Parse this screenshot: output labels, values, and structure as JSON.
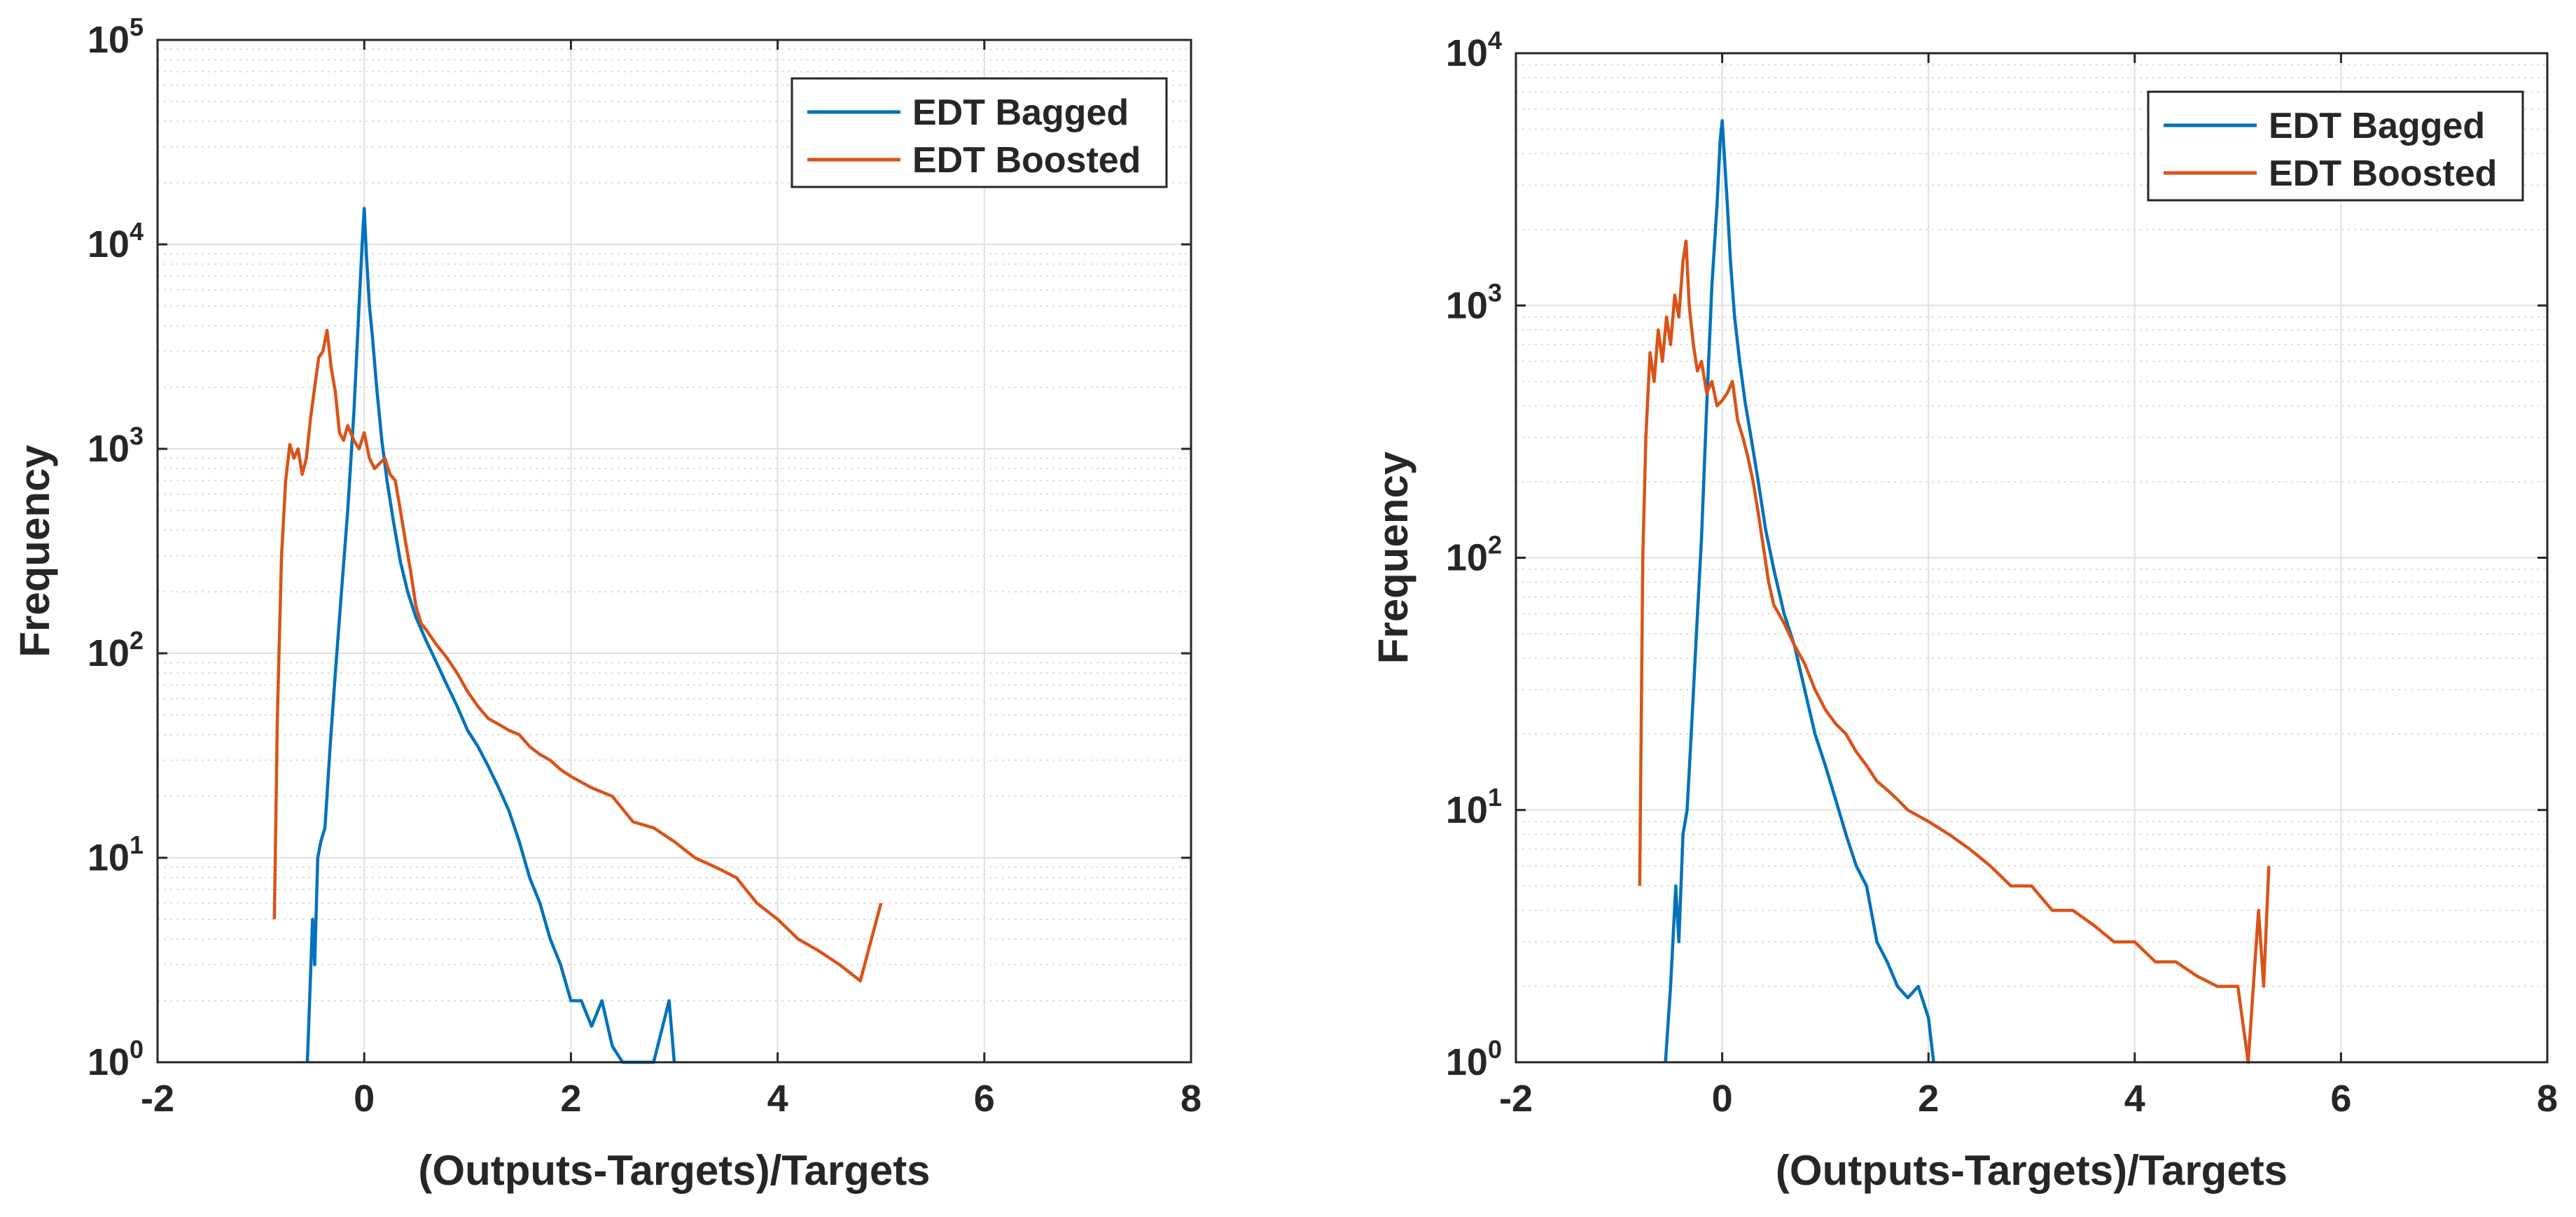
{
  "chart_data": [
    {
      "type": "line",
      "xlabel": "(Outputs-Targets)/Targets",
      "ylabel": "Frequency",
      "xlim": [
        -2,
        8
      ],
      "ylim": [
        1,
        100000
      ],
      "yscale": "log",
      "grid": true,
      "minor_grid": true,
      "legend_position": "top-right",
      "x_ticks": [
        "-2",
        "0",
        "2",
        "4",
        "6",
        "8"
      ],
      "y_ticks": [
        {
          "base": "10",
          "exp": "0"
        },
        {
          "base": "10",
          "exp": "1"
        },
        {
          "base": "10",
          "exp": "2"
        },
        {
          "base": "10",
          "exp": "3"
        },
        {
          "base": "10",
          "exp": "4"
        },
        {
          "base": "10",
          "exp": "5"
        }
      ],
      "series": [
        {
          "name": "EDT Bagged",
          "color": "#0072BD",
          "points": [
            [
              -0.55,
              1
            ],
            [
              -0.5,
              5
            ],
            [
              -0.48,
              3
            ],
            [
              -0.45,
              10
            ],
            [
              -0.42,
              12
            ],
            [
              -0.38,
              14
            ],
            [
              -0.33,
              35
            ],
            [
              -0.28,
              80
            ],
            [
              -0.22,
              200
            ],
            [
              -0.16,
              500
            ],
            [
              -0.1,
              1500
            ],
            [
              -0.05,
              5000
            ],
            [
              -0.02,
              10000
            ],
            [
              0.0,
              15000
            ],
            [
              0.02,
              9000
            ],
            [
              0.05,
              5000
            ],
            [
              0.08,
              3500
            ],
            [
              0.12,
              2000
            ],
            [
              0.17,
              1100
            ],
            [
              0.22,
              700
            ],
            [
              0.28,
              450
            ],
            [
              0.35,
              280
            ],
            [
              0.42,
              200
            ],
            [
              0.5,
              150
            ],
            [
              0.6,
              115
            ],
            [
              0.7,
              90
            ],
            [
              0.8,
              70
            ],
            [
              0.9,
              55
            ],
            [
              1.0,
              42
            ],
            [
              1.1,
              35
            ],
            [
              1.2,
              28
            ],
            [
              1.3,
              22
            ],
            [
              1.4,
              17
            ],
            [
              1.5,
              12
            ],
            [
              1.6,
              8
            ],
            [
              1.7,
              6
            ],
            [
              1.8,
              4
            ],
            [
              1.9,
              3
            ],
            [
              2.0,
              2
            ],
            [
              2.1,
              2
            ],
            [
              2.2,
              1.5
            ],
            [
              2.3,
              2
            ],
            [
              2.4,
              1.2
            ],
            [
              2.5,
              1
            ],
            [
              2.8,
              1
            ],
            [
              2.95,
              2
            ],
            [
              3.0,
              1
            ]
          ]
        },
        {
          "name": "EDT Boosted",
          "color": "#D95319",
          "points": [
            [
              -0.87,
              5
            ],
            [
              -0.84,
              50
            ],
            [
              -0.8,
              300
            ],
            [
              -0.76,
              700
            ],
            [
              -0.72,
              1050
            ],
            [
              -0.68,
              900
            ],
            [
              -0.64,
              1000
            ],
            [
              -0.6,
              750
            ],
            [
              -0.56,
              900
            ],
            [
              -0.52,
              1400
            ],
            [
              -0.48,
              2000
            ],
            [
              -0.44,
              2800
            ],
            [
              -0.4,
              3000
            ],
            [
              -0.36,
              3800
            ],
            [
              -0.32,
              2500
            ],
            [
              -0.28,
              1900
            ],
            [
              -0.24,
              1200
            ],
            [
              -0.2,
              1100
            ],
            [
              -0.16,
              1300
            ],
            [
              -0.1,
              1100
            ],
            [
              -0.05,
              1000
            ],
            [
              0.0,
              1200
            ],
            [
              0.05,
              900
            ],
            [
              0.1,
              800
            ],
            [
              0.15,
              850
            ],
            [
              0.2,
              900
            ],
            [
              0.25,
              750
            ],
            [
              0.3,
              700
            ],
            [
              0.35,
              500
            ],
            [
              0.4,
              350
            ],
            [
              0.45,
              250
            ],
            [
              0.5,
              170
            ],
            [
              0.55,
              140
            ],
            [
              0.6,
              130
            ],
            [
              0.7,
              110
            ],
            [
              0.8,
              95
            ],
            [
              0.9,
              80
            ],
            [
              1.0,
              65
            ],
            [
              1.1,
              55
            ],
            [
              1.2,
              48
            ],
            [
              1.3,
              45
            ],
            [
              1.4,
              42
            ],
            [
              1.5,
              40
            ],
            [
              1.6,
              35
            ],
            [
              1.7,
              32
            ],
            [
              1.8,
              30
            ],
            [
              1.9,
              27
            ],
            [
              2.0,
              25
            ],
            [
              2.2,
              22
            ],
            [
              2.4,
              20
            ],
            [
              2.6,
              15
            ],
            [
              2.8,
              14
            ],
            [
              3.0,
              12
            ],
            [
              3.2,
              10
            ],
            [
              3.4,
              9
            ],
            [
              3.6,
              8
            ],
            [
              3.8,
              6
            ],
            [
              4.0,
              5
            ],
            [
              4.2,
              4
            ],
            [
              4.4,
              3.5
            ],
            [
              4.6,
              3
            ],
            [
              4.8,
              2.5
            ],
            [
              5.0,
              6
            ]
          ]
        }
      ]
    },
    {
      "type": "line",
      "xlabel": "(Outputs-Targets)/Targets",
      "ylabel": "Frequency",
      "xlim": [
        -2,
        8
      ],
      "ylim": [
        1,
        10000
      ],
      "yscale": "log",
      "grid": true,
      "minor_grid": true,
      "legend_position": "top-right",
      "x_ticks": [
        "-2",
        "0",
        "2",
        "4",
        "6",
        "8"
      ],
      "y_ticks": [
        {
          "base": "10",
          "exp": "0"
        },
        {
          "base": "10",
          "exp": "1"
        },
        {
          "base": "10",
          "exp": "2"
        },
        {
          "base": "10",
          "exp": "3"
        },
        {
          "base": "10",
          "exp": "4"
        }
      ],
      "series": [
        {
          "name": "EDT Bagged",
          "color": "#0072BD",
          "points": [
            [
              -0.55,
              1
            ],
            [
              -0.5,
              2
            ],
            [
              -0.45,
              5
            ],
            [
              -0.42,
              3
            ],
            [
              -0.38,
              8
            ],
            [
              -0.34,
              10
            ],
            [
              -0.3,
              20
            ],
            [
              -0.25,
              50
            ],
            [
              -0.2,
              120
            ],
            [
              -0.15,
              400
            ],
            [
              -0.1,
              1200
            ],
            [
              -0.05,
              2500
            ],
            [
              -0.02,
              4500
            ],
            [
              0.0,
              5400
            ],
            [
              0.02,
              4000
            ],
            [
              0.05,
              2500
            ],
            [
              0.08,
              1500
            ],
            [
              0.12,
              900
            ],
            [
              0.17,
              600
            ],
            [
              0.22,
              420
            ],
            [
              0.28,
              300
            ],
            [
              0.35,
              200
            ],
            [
              0.42,
              130
            ],
            [
              0.5,
              90
            ],
            [
              0.6,
              60
            ],
            [
              0.7,
              45
            ],
            [
              0.8,
              30
            ],
            [
              0.9,
              20
            ],
            [
              1.0,
              15
            ],
            [
              1.1,
              11
            ],
            [
              1.2,
              8
            ],
            [
              1.3,
              6
            ],
            [
              1.4,
              5
            ],
            [
              1.5,
              3
            ],
            [
              1.6,
              2.5
            ],
            [
              1.7,
              2
            ],
            [
              1.8,
              1.8
            ],
            [
              1.9,
              2
            ],
            [
              2.0,
              1.5
            ],
            [
              2.05,
              1
            ]
          ]
        },
        {
          "name": "EDT Boosted",
          "color": "#D95319",
          "points": [
            [
              -0.8,
              5
            ],
            [
              -0.77,
              100
            ],
            [
              -0.74,
              300
            ],
            [
              -0.7,
              650
            ],
            [
              -0.66,
              500
            ],
            [
              -0.62,
              800
            ],
            [
              -0.58,
              600
            ],
            [
              -0.54,
              900
            ],
            [
              -0.5,
              700
            ],
            [
              -0.46,
              1100
            ],
            [
              -0.42,
              900
            ],
            [
              -0.38,
              1500
            ],
            [
              -0.35,
              1800
            ],
            [
              -0.32,
              1000
            ],
            [
              -0.28,
              700
            ],
            [
              -0.24,
              550
            ],
            [
              -0.2,
              600
            ],
            [
              -0.15,
              450
            ],
            [
              -0.1,
              500
            ],
            [
              -0.05,
              400
            ],
            [
              0.0,
              420
            ],
            [
              0.05,
              450
            ],
            [
              0.1,
              500
            ],
            [
              0.15,
              350
            ],
            [
              0.2,
              300
            ],
            [
              0.25,
              250
            ],
            [
              0.3,
              200
            ],
            [
              0.35,
              150
            ],
            [
              0.4,
              110
            ],
            [
              0.45,
              80
            ],
            [
              0.5,
              65
            ],
            [
              0.6,
              55
            ],
            [
              0.7,
              45
            ],
            [
              0.8,
              38
            ],
            [
              0.9,
              30
            ],
            [
              1.0,
              25
            ],
            [
              1.1,
              22
            ],
            [
              1.2,
              20
            ],
            [
              1.3,
              17
            ],
            [
              1.4,
              15
            ],
            [
              1.5,
              13
            ],
            [
              1.6,
              12
            ],
            [
              1.7,
              11
            ],
            [
              1.8,
              10
            ],
            [
              2.0,
              9
            ],
            [
              2.2,
              8
            ],
            [
              2.4,
              7
            ],
            [
              2.6,
              6
            ],
            [
              2.8,
              5
            ],
            [
              3.0,
              5
            ],
            [
              3.2,
              4
            ],
            [
              3.4,
              4
            ],
            [
              3.6,
              3.5
            ],
            [
              3.8,
              3
            ],
            [
              4.0,
              3
            ],
            [
              4.2,
              2.5
            ],
            [
              4.4,
              2.5
            ],
            [
              4.6,
              2.2
            ],
            [
              4.8,
              2
            ],
            [
              5.0,
              2
            ],
            [
              5.1,
              1
            ],
            [
              5.2,
              4
            ],
            [
              5.25,
              2
            ],
            [
              5.3,
              6
            ]
          ]
        }
      ]
    }
  ]
}
